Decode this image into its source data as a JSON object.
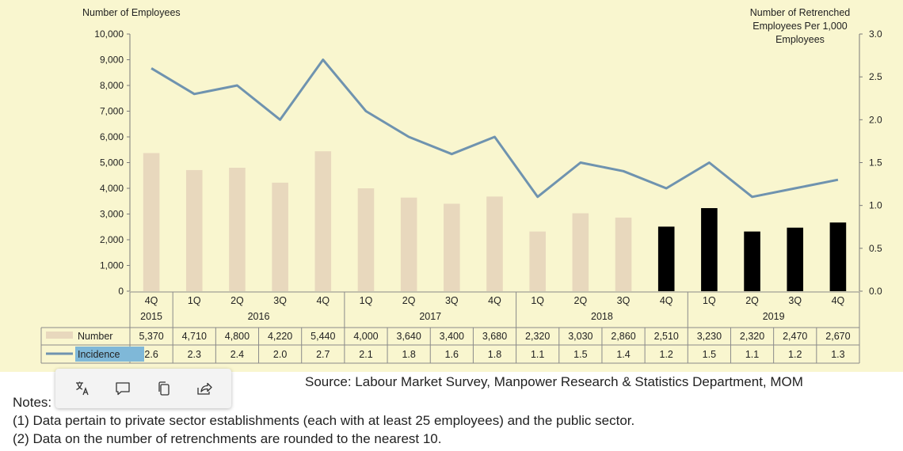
{
  "chart_data": {
    "type": "bar+line",
    "y_left_label": "Number of Employees",
    "y_right_label": [
      "Number of Retrenched",
      "Employees Per 1,000",
      "Employees"
    ],
    "y_left_ticks": [
      "0",
      "1,000",
      "2,000",
      "3,000",
      "4,000",
      "5,000",
      "6,000",
      "7,000",
      "8,000",
      "9,000",
      "10,000"
    ],
    "y_right_ticks": [
      "0.0",
      "0.5",
      "1.0",
      "1.5",
      "2.0",
      "2.5",
      "3.0"
    ],
    "ylim_left": [
      0,
      10000
    ],
    "ylim_right": [
      0,
      3
    ],
    "quarters": [
      "4Q",
      "1Q",
      "2Q",
      "3Q",
      "4Q",
      "1Q",
      "2Q",
      "3Q",
      "4Q",
      "1Q",
      "2Q",
      "3Q",
      "4Q",
      "1Q",
      "2Q",
      "3Q",
      "4Q"
    ],
    "years": [
      {
        "label": "2015",
        "start": 0,
        "end": 0
      },
      {
        "label": "2016",
        "start": 1,
        "end": 4
      },
      {
        "label": "2017",
        "start": 5,
        "end": 8
      },
      {
        "label": "2018",
        "start": 9,
        "end": 12
      },
      {
        "label": "2019",
        "start": 13,
        "end": 16
      }
    ],
    "series": [
      {
        "name": "Number",
        "kind": "bar",
        "values": [
          5370,
          4710,
          4800,
          4220,
          5440,
          4000,
          3640,
          3400,
          3680,
          2320,
          3030,
          2860,
          2510,
          3230,
          2320,
          2470,
          2670
        ],
        "labels": [
          "5,370",
          "4,710",
          "4,800",
          "4,220",
          "5,440",
          "4,000",
          "3,640",
          "3,400",
          "3,680",
          "2,320",
          "3,030",
          "2,860",
          "2,510",
          "3,230",
          "2,320",
          "2,470",
          "2,670"
        ]
      },
      {
        "name": "Incidence",
        "kind": "line",
        "axis": "right",
        "values": [
          2.6,
          2.3,
          2.4,
          2.0,
          2.7,
          2.1,
          1.8,
          1.6,
          1.8,
          1.1,
          1.5,
          1.4,
          1.2,
          1.5,
          1.1,
          1.2,
          1.3
        ],
        "labels": [
          "2.6",
          "2.3",
          "2.4",
          "2.0",
          "2.7",
          "2.1",
          "1.8",
          "1.6",
          "1.8",
          "1.1",
          "1.5",
          "1.4",
          "1.2",
          "1.5",
          "1.1",
          "1.2",
          "1.3"
        ]
      }
    ],
    "highlight_from_index": 12,
    "colors": {
      "plot_bg": "#f9f6cf",
      "bar": "#e8d8bd",
      "bar_highlight": "#000000",
      "line": "#6f93af",
      "incidence_label_bg": "#7fb8d8"
    }
  },
  "source": "Source: Labour Market Survey, Manpower Research & Statistics Department, MOM",
  "notes": {
    "title": "Notes:",
    "items": [
      "(1)  Data pertain to private sector establishments (each with at least 25 employees) and the public sector.",
      "(2)  Data on the number of retrenchments are rounded to the nearest 10."
    ]
  },
  "toolbar": {
    "items": [
      "translate-icon",
      "comment-icon",
      "copy-icon",
      "share-icon"
    ]
  }
}
